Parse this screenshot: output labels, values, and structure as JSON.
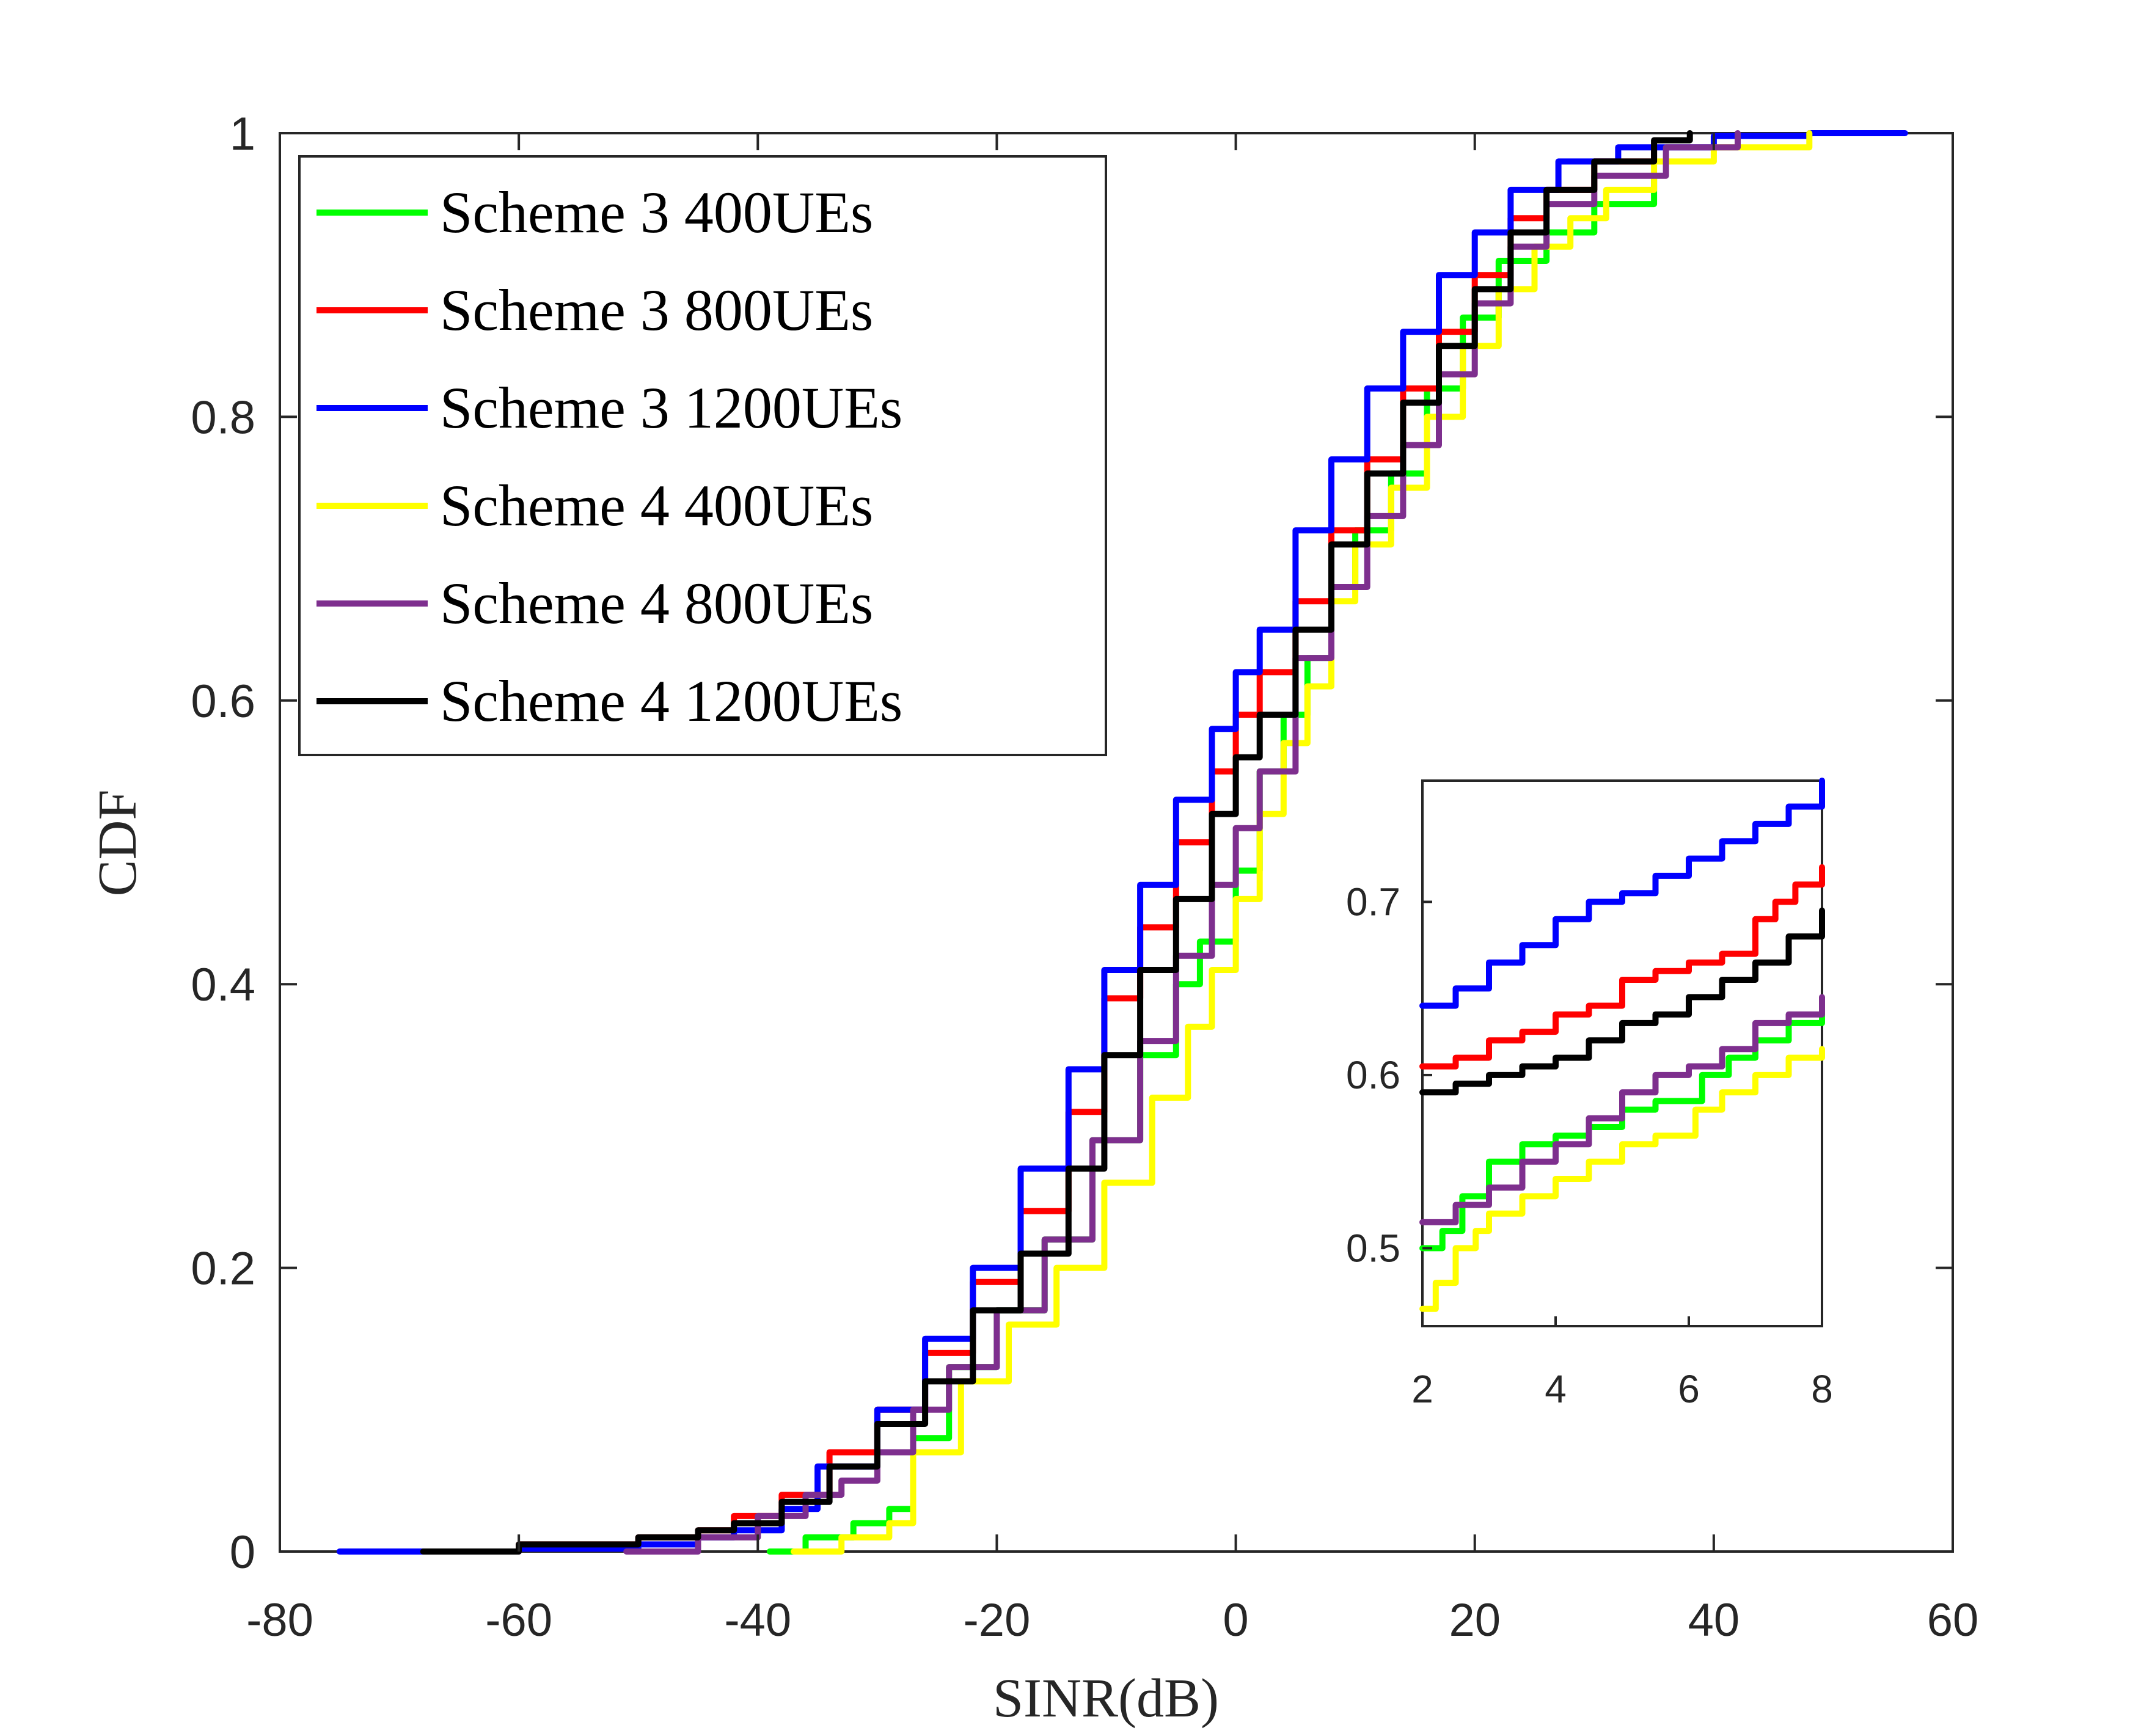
{
  "chart_data": {
    "type": "line",
    "title": "",
    "xlabel": "SINR(dB)",
    "ylabel": "CDF",
    "xlim": [
      -80,
      60
    ],
    "ylim": [
      0,
      1
    ],
    "xticks": [
      -80,
      -60,
      -40,
      -20,
      0,
      20,
      40,
      60
    ],
    "xtick_labels": [
      "-80",
      "-60",
      "-40",
      "-20",
      "0",
      "20",
      "40",
      "60"
    ],
    "yticks": [
      0,
      0.2,
      0.4,
      0.6,
      0.8,
      1
    ],
    "ytick_labels": [
      "0",
      "0.2",
      "0.4",
      "0.6",
      "0.8",
      "1"
    ],
    "grid": false,
    "legend_position": "top-left",
    "series": [
      {
        "name": "Scheme 3 400UEs",
        "color": "#00ff00",
        "x": [
          -39,
          -36,
          -32,
          -29,
          -27,
          -24,
          -20,
          -16,
          -12,
          -8,
          -5,
          -3,
          0,
          2,
          4,
          6,
          8,
          10,
          13,
          16,
          19,
          22,
          26,
          30,
          35
        ],
        "y": [
          0.0,
          0.01,
          0.02,
          0.03,
          0.08,
          0.13,
          0.17,
          0.22,
          0.29,
          0.35,
          0.4,
          0.43,
          0.48,
          0.55,
          0.59,
          0.63,
          0.68,
          0.72,
          0.76,
          0.82,
          0.87,
          0.91,
          0.93,
          0.95,
          0.97
        ]
      },
      {
        "name": "Scheme 3 800UEs",
        "color": "#ff0000",
        "x": [
          -68,
          -60,
          -50,
          -45,
          -42,
          -38,
          -34,
          -30,
          -26,
          -22,
          -18,
          -14,
          -11,
          -8,
          -5,
          -2,
          0,
          2,
          5,
          8,
          11,
          14,
          17,
          20,
          23,
          26,
          30,
          35
        ],
        "y": [
          0.0,
          0.005,
          0.01,
          0.015,
          0.025,
          0.04,
          0.07,
          0.1,
          0.14,
          0.19,
          0.24,
          0.31,
          0.39,
          0.44,
          0.5,
          0.55,
          0.59,
          0.62,
          0.67,
          0.72,
          0.77,
          0.82,
          0.86,
          0.9,
          0.94,
          0.96,
          0.98,
          0.99
        ]
      },
      {
        "name": "Scheme 3 1200UEs",
        "color": "#0000ff",
        "x": [
          -75,
          -60,
          -50,
          -45,
          -42,
          -38,
          -35,
          -30,
          -26,
          -22,
          -18,
          -14,
          -11,
          -8,
          -5,
          -2,
          0,
          2,
          5,
          8,
          11,
          14,
          17,
          20,
          23,
          27,
          32,
          40,
          48,
          56
        ],
        "y": [
          0.0,
          0.002,
          0.005,
          0.01,
          0.015,
          0.03,
          0.06,
          0.1,
          0.15,
          0.2,
          0.27,
          0.34,
          0.41,
          0.47,
          0.53,
          0.58,
          0.62,
          0.65,
          0.72,
          0.77,
          0.82,
          0.86,
          0.9,
          0.93,
          0.96,
          0.98,
          0.99,
          0.998,
          1.0,
          1.0
        ]
      },
      {
        "name": "Scheme 4 400UEs",
        "color": "#ffff00",
        "x": [
          -37,
          -33,
          -29,
          -27,
          -23,
          -19,
          -15,
          -11,
          -7,
          -4,
          -2,
          0,
          2,
          4,
          6,
          8,
          10,
          13,
          16,
          19,
          22,
          25,
          28,
          31,
          35,
          40,
          48
        ],
        "y": [
          0.0,
          0.01,
          0.02,
          0.07,
          0.12,
          0.16,
          0.2,
          0.26,
          0.32,
          0.37,
          0.41,
          0.46,
          0.52,
          0.57,
          0.61,
          0.67,
          0.71,
          0.75,
          0.8,
          0.85,
          0.89,
          0.92,
          0.94,
          0.96,
          0.98,
          0.99,
          1.0
        ]
      },
      {
        "name": "Scheme 4 800UEs",
        "color": "#7e2f8e",
        "x": [
          -51,
          -45,
          -40,
          -36,
          -33,
          -30,
          -27,
          -24,
          -20,
          -16,
          -12,
          -8,
          -5,
          -2,
          0,
          2,
          5,
          8,
          11,
          14,
          17,
          20,
          23,
          26,
          30,
          36,
          42
        ],
        "y": [
          0.0,
          0.01,
          0.025,
          0.04,
          0.05,
          0.07,
          0.1,
          0.13,
          0.17,
          0.22,
          0.29,
          0.36,
          0.42,
          0.47,
          0.51,
          0.55,
          0.63,
          0.68,
          0.73,
          0.78,
          0.83,
          0.88,
          0.92,
          0.95,
          0.97,
          0.99,
          1.0
        ]
      },
      {
        "name": "Scheme 4 1200UEs",
        "color": "#000000",
        "x": [
          -68,
          -60,
          -50,
          -45,
          -42,
          -38,
          -34,
          -30,
          -26,
          -22,
          -18,
          -14,
          -11,
          -8,
          -5,
          -2,
          0,
          2,
          5,
          8,
          11,
          14,
          17,
          20,
          23,
          26,
          30,
          35,
          38
        ],
        "y": [
          0.0,
          0.005,
          0.01,
          0.015,
          0.02,
          0.035,
          0.06,
          0.09,
          0.12,
          0.17,
          0.21,
          0.27,
          0.35,
          0.41,
          0.46,
          0.52,
          0.56,
          0.59,
          0.65,
          0.71,
          0.76,
          0.81,
          0.85,
          0.89,
          0.93,
          0.96,
          0.98,
          0.995,
          1.0
        ]
      }
    ],
    "inset": {
      "xlim": [
        2,
        8
      ],
      "ylim": [
        0.455,
        0.77
      ],
      "xticks": [
        2,
        4,
        6,
        8
      ],
      "xtick_labels": [
        "2",
        "4",
        "6",
        "8"
      ],
      "yticks": [
        0.5,
        0.6,
        0.7
      ],
      "ytick_labels": [
        "0.5",
        "0.6",
        "0.7"
      ],
      "series": [
        {
          "name": "Scheme 3 400UEs",
          "color": "#00ff00",
          "x": [
            2,
            2.3,
            2.6,
            3,
            3.5,
            4,
            4.5,
            5,
            5.5,
            5.8,
            6.2,
            6.6,
            7,
            7.5,
            8
          ],
          "y": [
            0.5,
            0.51,
            0.53,
            0.55,
            0.56,
            0.565,
            0.57,
            0.58,
            0.585,
            0.585,
            0.6,
            0.61,
            0.62,
            0.63,
            0.635
          ]
        },
        {
          "name": "Scheme 3 800UEs",
          "color": "#ff0000",
          "x": [
            2,
            2.5,
            3,
            3.5,
            4,
            4.5,
            5,
            5.5,
            6,
            6.5,
            7,
            7.3,
            7.6,
            8
          ],
          "y": [
            0.605,
            0.61,
            0.62,
            0.625,
            0.635,
            0.64,
            0.655,
            0.66,
            0.665,
            0.67,
            0.69,
            0.7,
            0.71,
            0.72
          ]
        },
        {
          "name": "Scheme 3 1200UEs",
          "color": "#0000ff",
          "x": [
            2,
            2.5,
            3,
            3.5,
            4,
            4.5,
            5,
            5.5,
            6,
            6.5,
            7,
            7.5,
            8
          ],
          "y": [
            0.64,
            0.65,
            0.665,
            0.675,
            0.69,
            0.7,
            0.705,
            0.715,
            0.725,
            0.735,
            0.745,
            0.755,
            0.77
          ]
        },
        {
          "name": "Scheme 4 400UEs",
          "color": "#ffff00",
          "x": [
            2,
            2.2,
            2.5,
            2.8,
            3,
            3.5,
            4,
            4.5,
            5,
            5.5,
            5.9,
            6.1,
            6.5,
            7,
            7.5,
            8
          ],
          "y": [
            0.465,
            0.48,
            0.5,
            0.51,
            0.52,
            0.53,
            0.54,
            0.55,
            0.56,
            0.565,
            0.565,
            0.58,
            0.59,
            0.6,
            0.61,
            0.615
          ]
        },
        {
          "name": "Scheme 4 800UEs",
          "color": "#7e2f8e",
          "x": [
            2,
            2.5,
            3,
            3.5,
            4,
            4.5,
            5,
            5.5,
            6,
            6.5,
            7,
            7.5,
            8
          ],
          "y": [
            0.515,
            0.525,
            0.535,
            0.55,
            0.56,
            0.575,
            0.59,
            0.6,
            0.605,
            0.615,
            0.63,
            0.635,
            0.645
          ]
        },
        {
          "name": "Scheme 4 1200UEs",
          "color": "#000000",
          "x": [
            2,
            2.5,
            3,
            3.5,
            4,
            4.5,
            5,
            5.5,
            6,
            6.5,
            7,
            7.5,
            8
          ],
          "y": [
            0.59,
            0.595,
            0.6,
            0.605,
            0.61,
            0.62,
            0.63,
            0.635,
            0.645,
            0.655,
            0.665,
            0.68,
            0.695
          ]
        }
      ]
    }
  }
}
